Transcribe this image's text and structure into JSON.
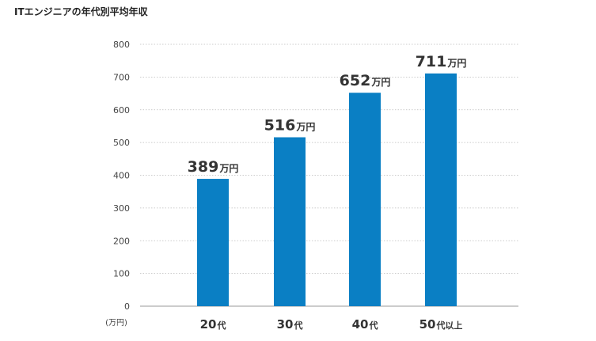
{
  "chart_data": {
    "type": "bar",
    "title": "ITエンジニアの年代別平均年収",
    "unit_label": "(万円)",
    "categories": [
      {
        "num": "20",
        "suffix": "代"
      },
      {
        "num": "30",
        "suffix": "代"
      },
      {
        "num": "40",
        "suffix": "代"
      },
      {
        "num": "50",
        "suffix": "代以上"
      }
    ],
    "values": [
      389,
      516,
      652,
      711
    ],
    "value_suffix": "万円",
    "yticks": [
      0,
      100,
      200,
      300,
      400,
      500,
      600,
      700,
      800
    ],
    "ylim": [
      0,
      800
    ],
    "grid": true,
    "bar_color": "#0a7fc4",
    "grid_color": "#bbbbbb"
  }
}
